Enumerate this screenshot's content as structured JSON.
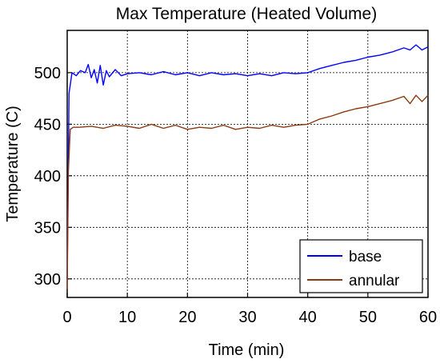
{
  "chart_data": {
    "type": "line",
    "title": "Max Temperature (Heated Volume)",
    "xlabel": "Time (min)",
    "ylabel": "Temperature (C)",
    "xlim": [
      0,
      60
    ],
    "ylim": [
      282,
      541
    ],
    "xticks": [
      0,
      10,
      20,
      30,
      40,
      50,
      60
    ],
    "yticks": [
      300,
      350,
      400,
      450,
      500
    ],
    "grid": true,
    "legend_position": "bottom-right",
    "series": [
      {
        "name": "base",
        "color": "#0000ff",
        "x": [
          0,
          0.3,
          0.8,
          1.5,
          2.2,
          3.0,
          3.5,
          4.0,
          4.5,
          5.0,
          5.5,
          6.0,
          6.5,
          7.0,
          8.0,
          9.0,
          10,
          12,
          14,
          16,
          18,
          20,
          22,
          24,
          26,
          28,
          30,
          32,
          34,
          36,
          38,
          40,
          42,
          44,
          46,
          48,
          50,
          52,
          54,
          56,
          57,
          58,
          59,
          60
        ],
        "y": [
          300,
          480,
          500,
          497,
          502,
          500,
          508,
          495,
          503,
          490,
          507,
          488,
          502,
          496,
          503,
          497,
          499,
          500,
          498,
          501,
          498,
          500,
          497,
          500,
          498,
          499,
          497,
          499,
          497,
          500,
          499,
          500,
          504,
          507,
          510,
          512,
          515,
          517,
          520,
          524,
          522,
          527,
          522,
          525
        ]
      },
      {
        "name": "annular",
        "color": "#8b3a0f",
        "x": [
          0,
          0.2,
          0.5,
          1.0,
          2.0,
          4.0,
          6.0,
          8.0,
          10,
          12,
          14,
          16,
          18,
          20,
          22,
          24,
          26,
          28,
          30,
          32,
          34,
          36,
          38,
          40,
          42,
          44,
          46,
          48,
          50,
          52,
          54,
          56,
          57,
          58,
          59,
          60
        ],
        "y": [
          290,
          405,
          445,
          447,
          447,
          448,
          446,
          449,
          448,
          446,
          450,
          446,
          449,
          445,
          447,
          446,
          449,
          445,
          447,
          446,
          449,
          447,
          449,
          450,
          455,
          458,
          462,
          465,
          467,
          470,
          473,
          477,
          470,
          478,
          472,
          478
        ]
      }
    ]
  }
}
